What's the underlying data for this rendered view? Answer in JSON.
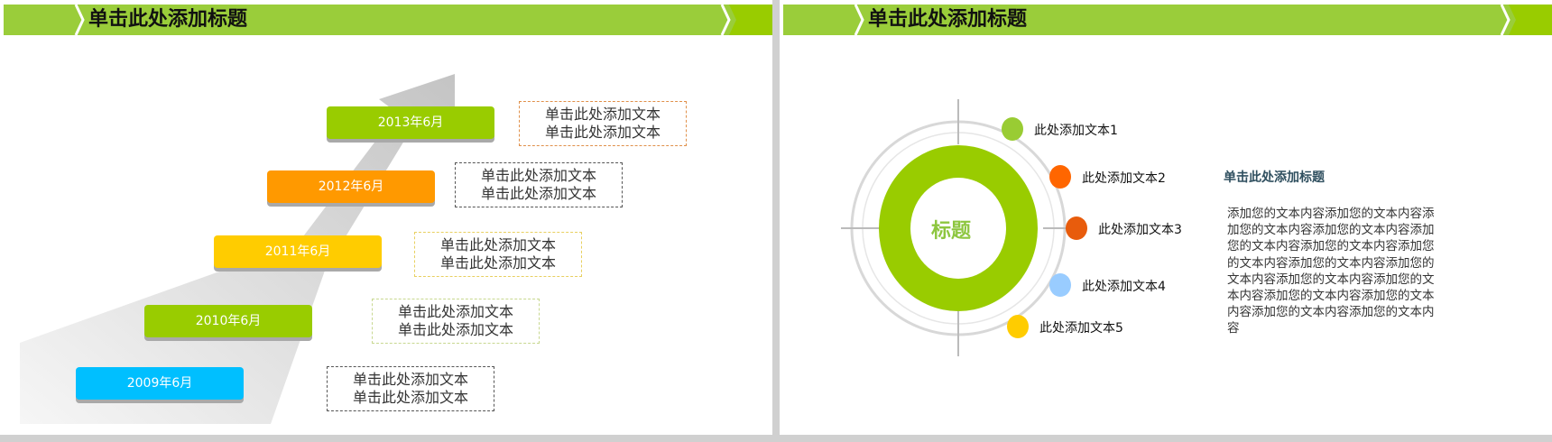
{
  "slide1": {
    "title": "单击此处添加标题",
    "milestones": [
      {
        "date": "2013年6月",
        "color": "#99cc00",
        "text": [
          "单击此处添加文本",
          "单击此处添加文本"
        ],
        "border": "#e0904a"
      },
      {
        "date": "2012年6月",
        "color": "#ff9900",
        "text": [
          "单击此处添加文本",
          "单击此处添加文本"
        ],
        "border": "#555555"
      },
      {
        "date": "2011年6月",
        "color": "#ffcc00",
        "text": [
          "单击此处添加文本",
          "单击此处添加文本"
        ],
        "border": "#e8d060"
      },
      {
        "date": "2010年6月",
        "color": "#99cc00",
        "text": [
          "单击此处添加文本",
          "单击此处添加文本"
        ],
        "border": "#c8d890"
      },
      {
        "date": "2009年6月",
        "color": "#00bfff",
        "text": [
          "单击此处添加文本",
          "单击此处添加文本"
        ],
        "border": "#555555"
      }
    ]
  },
  "slide2": {
    "title": "单击此处添加标题",
    "center_label": "标题",
    "items": [
      {
        "label": "此处添加文本1",
        "color": "#99cc33"
      },
      {
        "label": "此处添加文本2",
        "color": "#ff6600"
      },
      {
        "label": "此处添加文本3",
        "color": "#e85c0c"
      },
      {
        "label": "此处添加文本4",
        "color": "#99ccff"
      },
      {
        "label": "此处添加文本5",
        "color": "#ffcc00"
      }
    ],
    "heading": "单击此处添加标题",
    "paragraph": "添加您的文本内容添加您的文本内容添加您的文本内容添加您的文本内容添加您的文本内容添加您的文本内容添加您的文本内容添加您的文本内容添加您的文本内容添加您的文本内容添加您的文本内容添加您的文本内容添加您的文本内容添加您的文本内容添加您的文本内容"
  },
  "colors": {
    "header": "#9acd3a",
    "accent": "#99cc00",
    "heading": "#2f4f5f"
  }
}
